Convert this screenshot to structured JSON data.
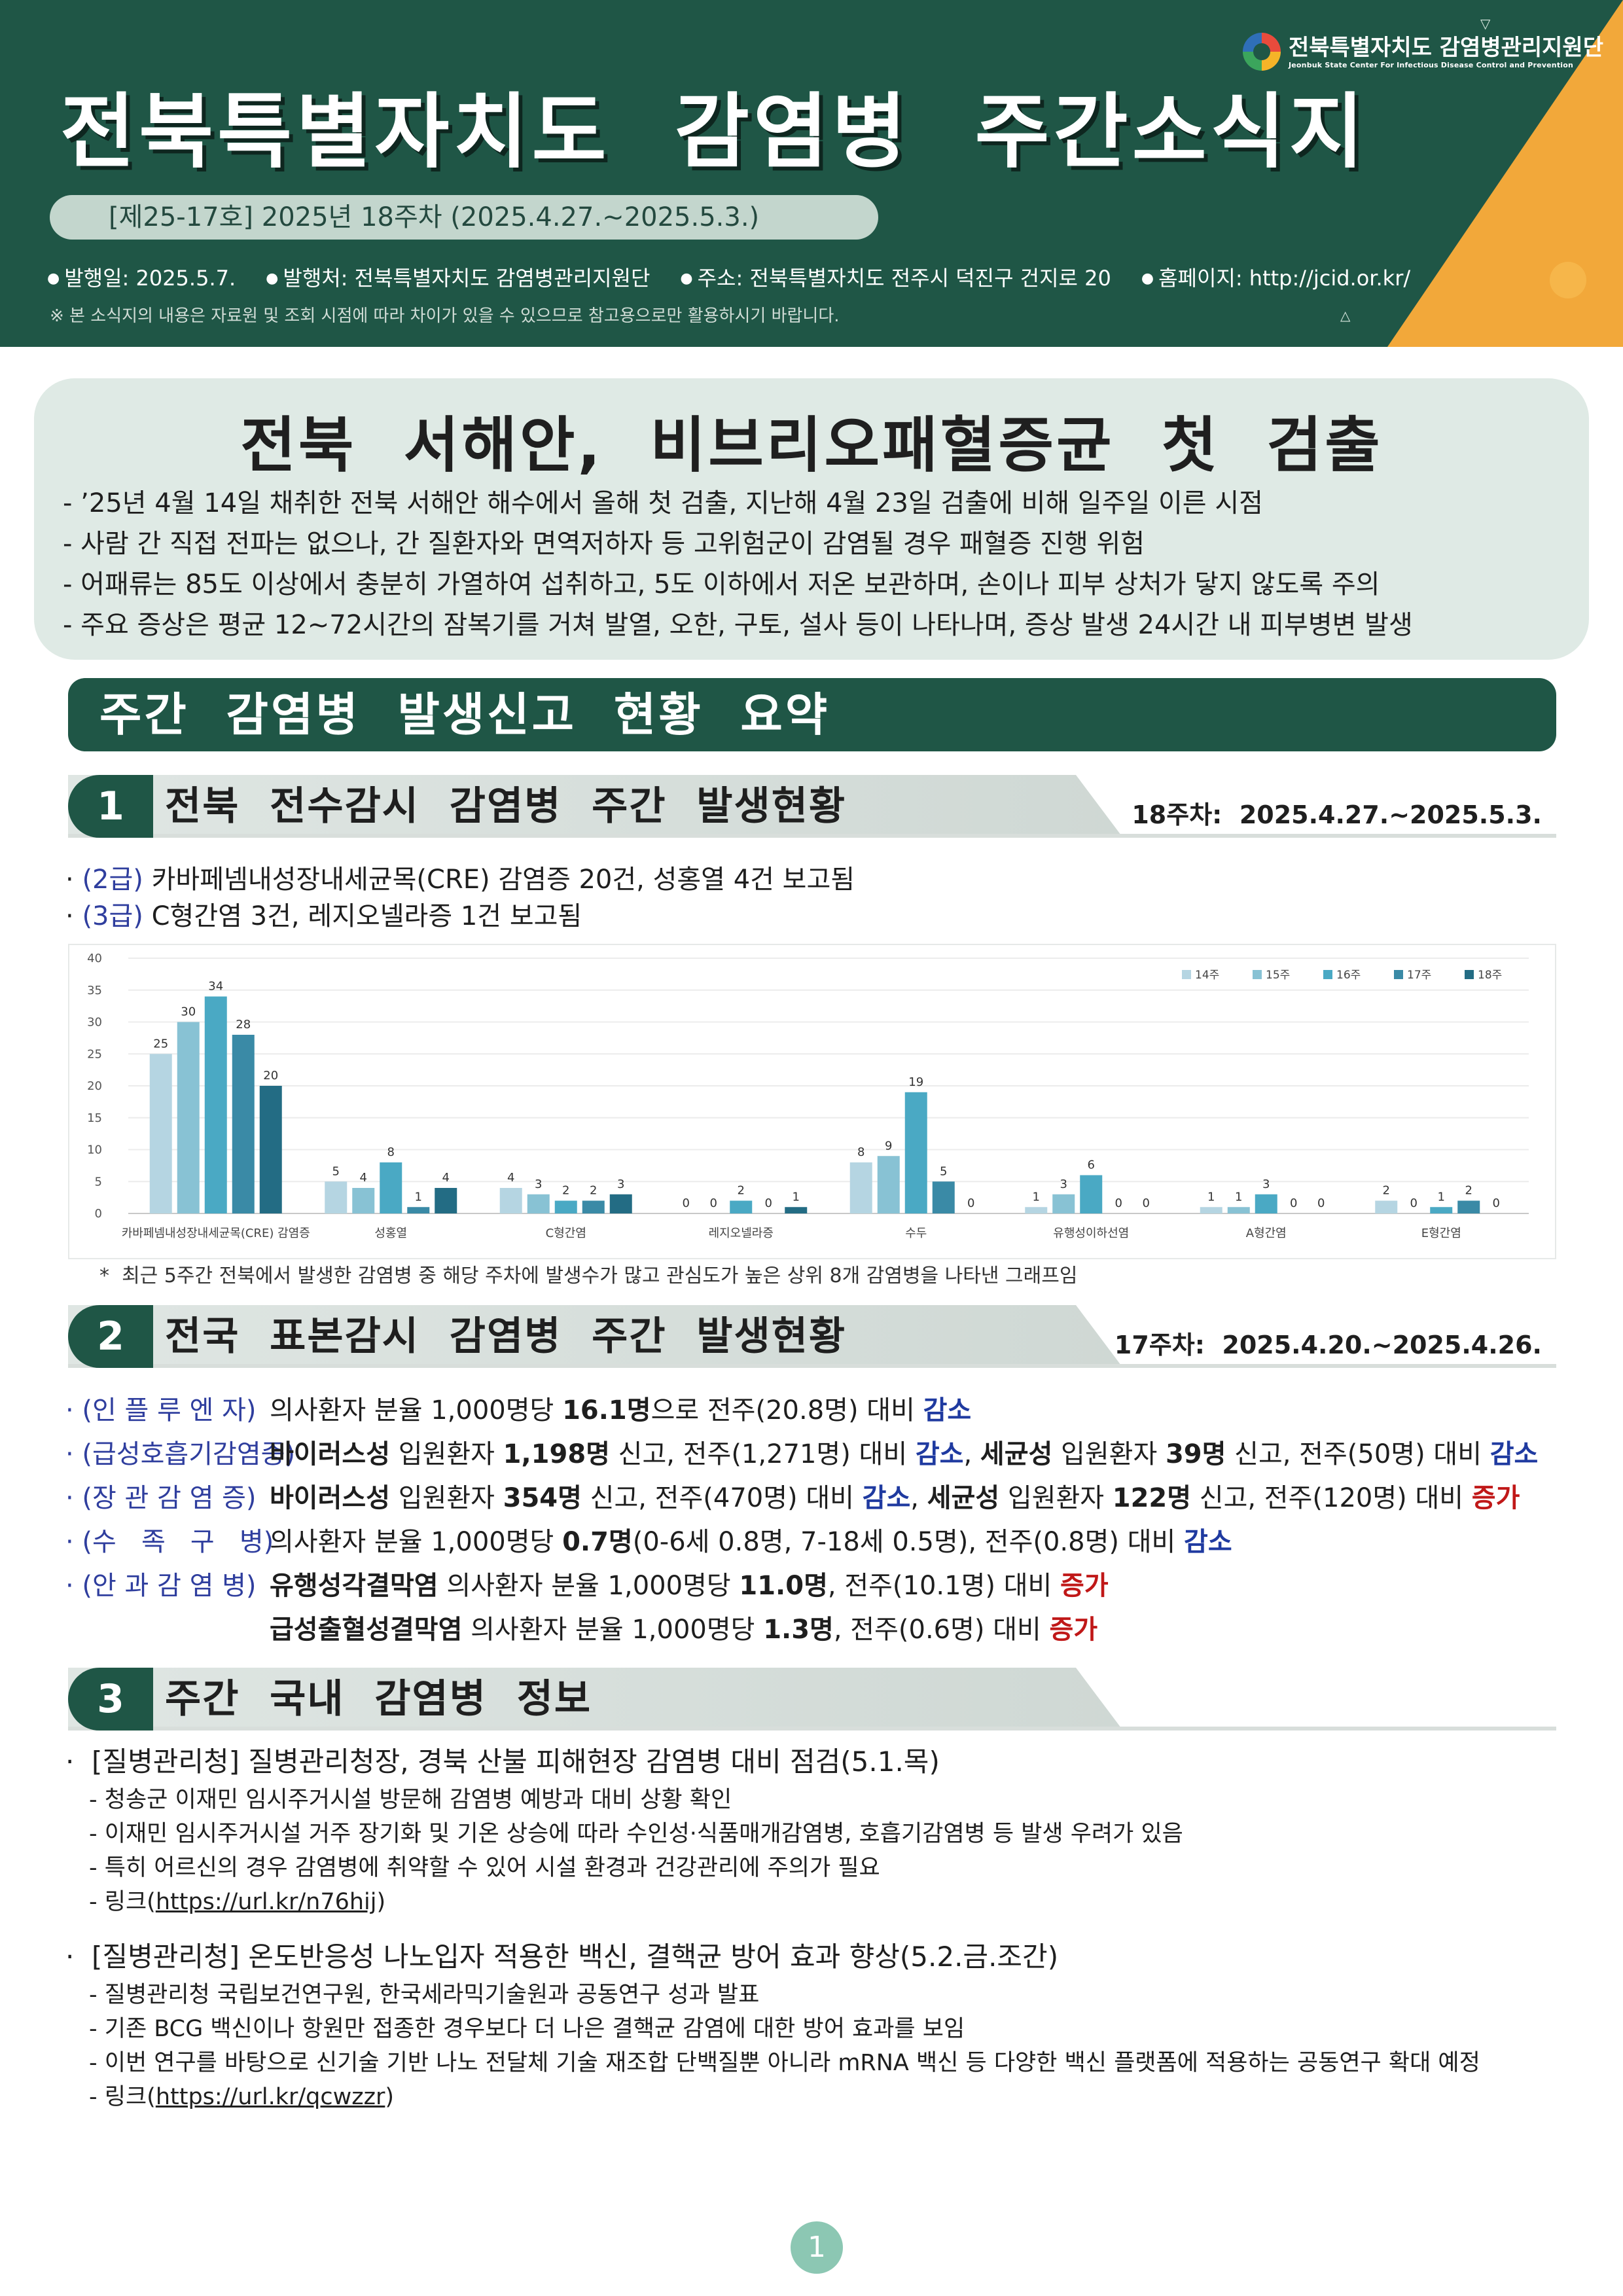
{
  "header": {
    "title": "전북특별자치도  감염병  주간소식지",
    "issue": "[제25-17호] 2025년 18주차 (2025.4.27.~2025.5.3.)",
    "pub_items": [
      "발행일: 2025.5.7.",
      "발행처: 전북특별자치도 감염병관리지원단",
      "주소: 전북특별자치도 전주시 덕진구 건지로 20",
      "홈페이지: http://jcid.or.kr/"
    ],
    "notice": "※ 본 소식지의 내용은 자료원 및 조회 시점에 따라 차이가 있을 수 있으므로 참고용으로만 활용하시기 바랍니다.",
    "logo_ko": "전북특별자치도 감염병관리지원단",
    "logo_en": "Jeonbuk State Center For Infectious Disease Control and Prevention"
  },
  "highlight": {
    "title": "전북  서해안,  비브리오패혈증균  첫  검출",
    "lines": [
      "- ’25년 4월 14일 채취한 전북 서해안 해수에서 올해 첫 검출, 지난해 4월 23일 검출에 비해 일주일 이른 시점",
      "- 사람 간 직접 전파는 없으나, 간 질환자와 면역저하자 등 고위험군이 감염될 경우 패혈증 진행 위험",
      "- 어패류는 85도 이상에서 충분히 가열하여 섭취하고, 5도 이하에서 저온 보관하며, 손이나 피부 상처가 닿지 않도록 주의",
      "- 주요 증상은 평균 12~72시간의 잠복기를 거쳐 발열, 오한, 구토, 설사 등이 나타나며, 증상 발생 24시간 내 피부병변 발생"
    ]
  },
  "summary_banner": "주간  감염병  발생신고  현황  요약",
  "section1": {
    "num": "1",
    "title": "전북  전수감시  감염병  주간  발생현황",
    "week": "18주차:  2025.4.27.~2025.5.3.",
    "bullets": [
      {
        "grade": "(2급)",
        "text": " 카바페넴내성장내세균목(CRE) 감염증 20건, 성홍열 4건 보고됨"
      },
      {
        "grade": "(3급)",
        "text": " C형간염 3건, 레지오넬라증 1건 보고됨"
      }
    ],
    "note": "*  최근 5주간 전북에서 발생한 감염병 중 해당 주차에 발생수가 많고 관심도가 높은 상위 8개 감염병을 나타낸 그래프임"
  },
  "chart_data": {
    "type": "bar",
    "categories": [
      "카바페넴내성장내세균목(CRE) 감염증",
      "성홍열",
      "C형간염",
      "레지오넬라증",
      "수두",
      "유행성이하선염",
      "A형간염",
      "E형간염"
    ],
    "series": [
      {
        "name": "14주",
        "values": [
          25,
          5,
          4,
          0,
          8,
          1,
          1,
          2
        ]
      },
      {
        "name": "15주",
        "values": [
          30,
          4,
          3,
          0,
          9,
          3,
          1,
          0
        ]
      },
      {
        "name": "16주",
        "values": [
          34,
          8,
          2,
          2,
          19,
          6,
          3,
          1
        ]
      },
      {
        "name": "17주",
        "values": [
          28,
          1,
          2,
          0,
          5,
          0,
          0,
          2
        ]
      },
      {
        "name": "18주",
        "values": [
          20,
          4,
          3,
          1,
          0,
          0,
          0,
          0
        ]
      }
    ],
    "ylim": [
      0,
      40
    ],
    "yticks": [
      0,
      5,
      10,
      15,
      20,
      25,
      30,
      35,
      40
    ],
    "colors": [
      "#b5d5e2",
      "#88c2d4",
      "#4aa9c4",
      "#3a8aa6",
      "#236c84"
    ],
    "grid": true,
    "legend": "top-right"
  },
  "section2": {
    "num": "2",
    "title": "전국  표본감시  감염병  주간  발생현황",
    "week": "17주차:  2025.4.20.~2025.4.26.",
    "rows": [
      {
        "cat": "(인 플 루 엔 자)",
        "segs": [
          {
            "t": "의사환자 분율 1,000명당 "
          },
          {
            "t": "16.1명",
            "c": "b"
          },
          {
            "t": "으로 전주(20.8명) 대비 "
          },
          {
            "t": "감소",
            "c": "dec"
          }
        ]
      },
      {
        "cat": "(급성호흡기감염증)",
        "segs": [
          {
            "t": "바이러스성",
            "c": "b"
          },
          {
            "t": " 입원환자 "
          },
          {
            "t": "1,198명",
            "c": "b"
          },
          {
            "t": " 신고, 전주(1,271명) 대비 "
          },
          {
            "t": "감소",
            "c": "dec"
          },
          {
            "t": ", "
          },
          {
            "t": "세균성",
            "c": "b"
          },
          {
            "t": " 입원환자 "
          },
          {
            "t": "39명",
            "c": "b"
          },
          {
            "t": " 신고, 전주(50명) 대비 "
          },
          {
            "t": "감소",
            "c": "dec"
          }
        ]
      },
      {
        "cat": "(장 관 감 염 증)",
        "segs": [
          {
            "t": "바이러스성",
            "c": "b"
          },
          {
            "t": " 입원환자 "
          },
          {
            "t": "354명",
            "c": "b"
          },
          {
            "t": " 신고, 전주(470명) 대비 "
          },
          {
            "t": "감소",
            "c": "dec"
          },
          {
            "t": ", "
          },
          {
            "t": "세균성",
            "c": "b"
          },
          {
            "t": " 입원환자 "
          },
          {
            "t": "122명",
            "c": "b"
          },
          {
            "t": " 신고, 전주(120명) 대비 "
          },
          {
            "t": "증가",
            "c": "inc"
          }
        ]
      },
      {
        "cat": "(수   족   구   병)",
        "segs": [
          {
            "t": "의사환자 분율 1,000명당 "
          },
          {
            "t": "0.7명",
            "c": "b"
          },
          {
            "t": "(0-6세 0.8명, 7-18세 0.5명), 전주(0.8명) 대비 "
          },
          {
            "t": "감소",
            "c": "dec"
          }
        ]
      },
      {
        "cat": "(안 과 감 염 병)",
        "segs": [
          {
            "t": "유행성각결막염",
            "c": "b"
          },
          {
            "t": " 의사환자 분율 1,000명당 "
          },
          {
            "t": "11.0명",
            "c": "b"
          },
          {
            "t": ", 전주(10.1명) 대비 "
          },
          {
            "t": "증가",
            "c": "inc"
          }
        ]
      },
      {
        "cat": "",
        "segs": [
          {
            "t": "급성출혈성결막염",
            "c": "b"
          },
          {
            "t": " 의사환자 분율 1,000명당 "
          },
          {
            "t": "1.3명",
            "c": "b"
          },
          {
            "t": ", 전주(0.6명) 대비 "
          },
          {
            "t": "증가",
            "c": "inc"
          }
        ]
      }
    ]
  },
  "section3": {
    "num": "3",
    "title": "주간  국내  감염병  정보",
    "news1": {
      "title": "·  [질병관리청] 질병관리청장, 경북 산불 피해현장 감염병 대비 점검(5.1.목)",
      "items": [
        "- 청송군 이재민 임시주거시설 방문해 감염병 예방과 대비 상황 확인",
        "- 이재민 임시주거시설 거주 장기화 및 기온 상승에 따라 수인성·식품매개감염병, 호흡기감염병 등 발생 우려가 있음",
        "- 특히 어르신의 경우 감염병에 취약할 수 있어 시설 환경과 건강관리에 주의가 필요"
      ],
      "link_prefix": "- 링크(",
      "link": "https://url.kr/n76hij",
      "link_suffix": ")"
    },
    "news2": {
      "title": "·  [질병관리청] 온도반응성 나노입자 적용한 백신, 결핵균 방어 효과 향상(5.2.금.조간)",
      "items": [
        "- 질병관리청 국립보건연구원, 한국세라믹기술원과 공동연구 성과 발표",
        "- 기존 BCG 백신이나 항원만 접종한 경우보다 더 나은 결핵균 감염에 대한 방어 효과를 보임",
        "- 이번 연구를 바탕으로 신기술 기반 나노 전달체 기술 재조합 단백질뿐 아니라 mRNA 백신 등 다양한 백신 플랫폼에 적용하는 공동연구 확대 예정"
      ],
      "link_prefix": "- 링크(",
      "link": "https://url.kr/qcwzzr",
      "link_suffix": ")"
    }
  },
  "page_number": "1"
}
